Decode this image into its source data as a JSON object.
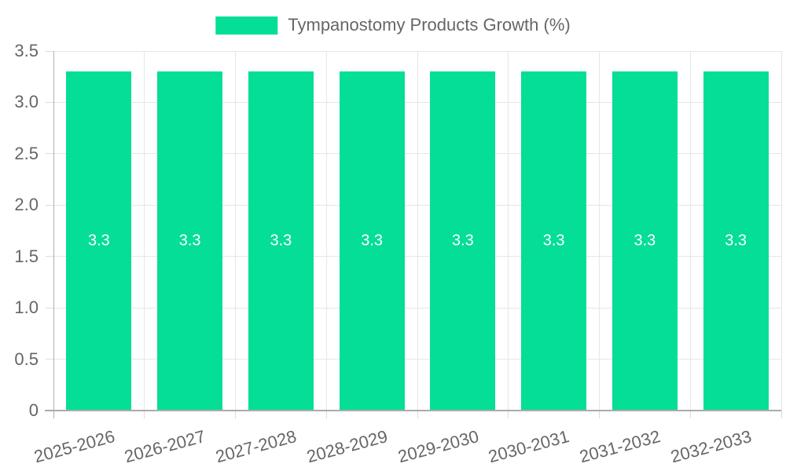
{
  "chart_data": {
    "type": "bar",
    "title": "Tympanostomy Products Growth (%)",
    "legend": {
      "label": "Tympanostomy Products Growth (%)",
      "position": "top",
      "swatch_color": "#05de96"
    },
    "categories": [
      "2025-2026",
      "2026-2027",
      "2027-2028",
      "2028-2029",
      "2029-2030",
      "2030-2031",
      "2031-2032",
      "2032-2033"
    ],
    "values": [
      3.3,
      3.3,
      3.3,
      3.3,
      3.3,
      3.3,
      3.3,
      3.3
    ],
    "bar_labels": [
      "3.3",
      "3.3",
      "3.3",
      "3.3",
      "3.3",
      "3.3",
      "3.3",
      "3.3"
    ],
    "xlabel": "",
    "ylabel": "",
    "ylim": [
      0,
      3.5
    ],
    "ytick_step": 0.5,
    "ytick_labels": [
      "0",
      "0.5",
      "1.0",
      "1.5",
      "2.0",
      "2.5",
      "3.0",
      "3.5"
    ],
    "grid": true,
    "colors": {
      "bar": "#05de96",
      "grid": "#e6e6e6",
      "axis": "#b0b0b0",
      "text": "#666666",
      "bar_label": "#ffffff",
      "background": "#ffffff"
    }
  }
}
